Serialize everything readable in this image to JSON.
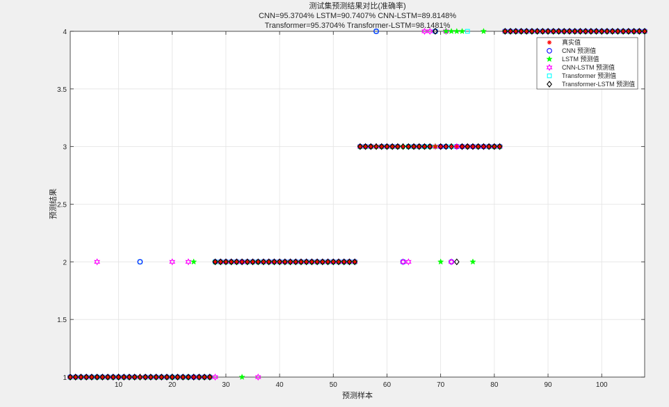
{
  "chart_data": {
    "type": "scatter",
    "title_lines": [
      "测试集预测结果对比(准确率)",
      "CNN=95.3704%  LSTM=90.7407%  CNN-LSTM=89.8148%",
      "Transformer=95.3704%  Transformer-LSTM=98.1481%"
    ],
    "xlabel": "预测样本",
    "ylabel": "预测结果",
    "xlim": [
      1,
      108
    ],
    "ylim": [
      1,
      4
    ],
    "xticks": [
      10,
      20,
      30,
      40,
      50,
      60,
      70,
      80,
      90,
      100
    ],
    "yticks": [
      1,
      1.5,
      2,
      2.5,
      3,
      3.5,
      4
    ],
    "ytick_labels": [
      "1",
      "1.5",
      "2",
      "2.5",
      "3",
      "3.5",
      "4"
    ],
    "grid": true,
    "legend_position": "top-right",
    "true_values": [
      1,
      1,
      1,
      1,
      1,
      1,
      1,
      1,
      1,
      1,
      1,
      1,
      1,
      1,
      1,
      1,
      1,
      1,
      1,
      1,
      1,
      1,
      1,
      1,
      1,
      1,
      1,
      2,
      2,
      2,
      2,
      2,
      2,
      2,
      2,
      2,
      2,
      2,
      2,
      2,
      2,
      2,
      2,
      2,
      2,
      2,
      2,
      2,
      2,
      2,
      2,
      2,
      2,
      2,
      3,
      3,
      3,
      3,
      3,
      3,
      3,
      3,
      3,
      3,
      3,
      3,
      3,
      3,
      3,
      3,
      3,
      3,
      3,
      3,
      3,
      3,
      3,
      3,
      3,
      3,
      3,
      4,
      4,
      4,
      4,
      4,
      4,
      4,
      4,
      4,
      4,
      4,
      4,
      4,
      4,
      4,
      4,
      4,
      4,
      4,
      4,
      4,
      4,
      4,
      4,
      4,
      4,
      4
    ],
    "series": [
      {
        "name": "真实值",
        "marker": "asterisk",
        "color": "#ff0000",
        "errors": []
      },
      {
        "name": "CNN 预测值",
        "marker": "circle",
        "color": "#0000ff",
        "errors": [
          [
            14,
            2
          ],
          [
            58,
            4
          ],
          [
            63,
            2
          ],
          [
            69,
            4
          ],
          [
            72,
            2
          ]
        ]
      },
      {
        "name": "LSTM 预测值",
        "marker": "pentagram",
        "color": "#00ff00",
        "errors": [
          [
            24,
            2
          ],
          [
            33,
            1
          ],
          [
            70,
            2
          ],
          [
            71,
            2
          ],
          [
            71,
            4
          ],
          [
            72,
            4
          ],
          [
            73,
            4
          ],
          [
            74,
            4
          ],
          [
            76,
            2
          ],
          [
            78,
            4
          ]
        ]
      },
      {
        "name": "CNN-LSTM 预测值",
        "marker": "hexagram",
        "color": "#ff00ff",
        "errors": [
          [
            6,
            2
          ],
          [
            20,
            2
          ],
          [
            23,
            2
          ],
          [
            28,
            1
          ],
          [
            36,
            1
          ],
          [
            63,
            2
          ],
          [
            64,
            2
          ],
          [
            67,
            4
          ],
          [
            68,
            4
          ],
          [
            71,
            4
          ],
          [
            72,
            2
          ]
        ]
      },
      {
        "name": "Transformer 预测值",
        "marker": "square",
        "color": "#00ffff",
        "errors": [
          [
            14,
            2
          ],
          [
            58,
            4
          ],
          [
            63,
            2
          ],
          [
            69,
            4
          ],
          [
            75,
            4
          ]
        ]
      },
      {
        "name": "Transformer-LSTM 预测值",
        "marker": "diamond",
        "color": "#000000",
        "errors": [
          [
            69,
            4
          ],
          [
            73,
            2
          ]
        ]
      }
    ]
  }
}
